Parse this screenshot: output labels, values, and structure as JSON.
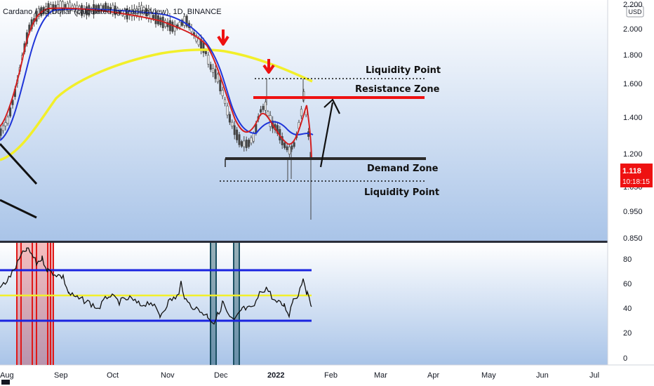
{
  "header": {
    "symbol_title": "Cardano / US Dollar (calculated by TradingView), 1D, BINANCE",
    "currency_badge": "USD"
  },
  "price_badge": {
    "price": "1.118",
    "countdown": "10:18:15"
  },
  "annotations": {
    "liquidity_top": "Liquidity Point",
    "resistance": "Resistance Zone",
    "demand": "Demand Zone",
    "liquidity_bottom": "Liquidity Point"
  },
  "colors": {
    "background_top": "#ffffff",
    "background_bottom": "#a9c4e8",
    "candle": "#444444",
    "ema_fast": "#d32020",
    "ema_mid": "#1f35d8",
    "ema_slow": "#f2ef2a",
    "resistance": "#ee1111",
    "arrow_red": "#ee1111",
    "rsi_line": "#111111",
    "rsi_band": "#1a24e0",
    "rsi_mid": "#f2ef2a",
    "highlight_red": "#e01818",
    "highlight_teal": "#1a4f62"
  },
  "chart_data": [
    {
      "type": "line",
      "title": "",
      "series": [
        {
          "name": "",
          "values": []
        }
      ],
      "price_axis_ticks": [
        "2.200",
        "2.000",
        "1.800",
        "1.600",
        "1.400",
        "1.200",
        "1.050",
        "0.950",
        "0.850"
      ],
      "time_axis_labels": [
        "Aug",
        "Sep",
        "Oct",
        "Nov",
        "Dec",
        "2022",
        "Feb",
        "Mar",
        "Apr",
        "May",
        "Jun",
        "Jul"
      ],
      "levels": {
        "liquidity_top": 1.63,
        "resistance": 1.52,
        "demand": 1.17,
        "liquidity_bottom": 1.07
      },
      "last_price": 1.118
    },
    {
      "type": "line",
      "title": "",
      "y_axis_ticks": [
        "80",
        "60",
        "40",
        "20",
        "0"
      ],
      "bands": {
        "upper": 70,
        "middle": 50,
        "lower": 30
      },
      "ylim": [
        0,
        90
      ]
    }
  ]
}
